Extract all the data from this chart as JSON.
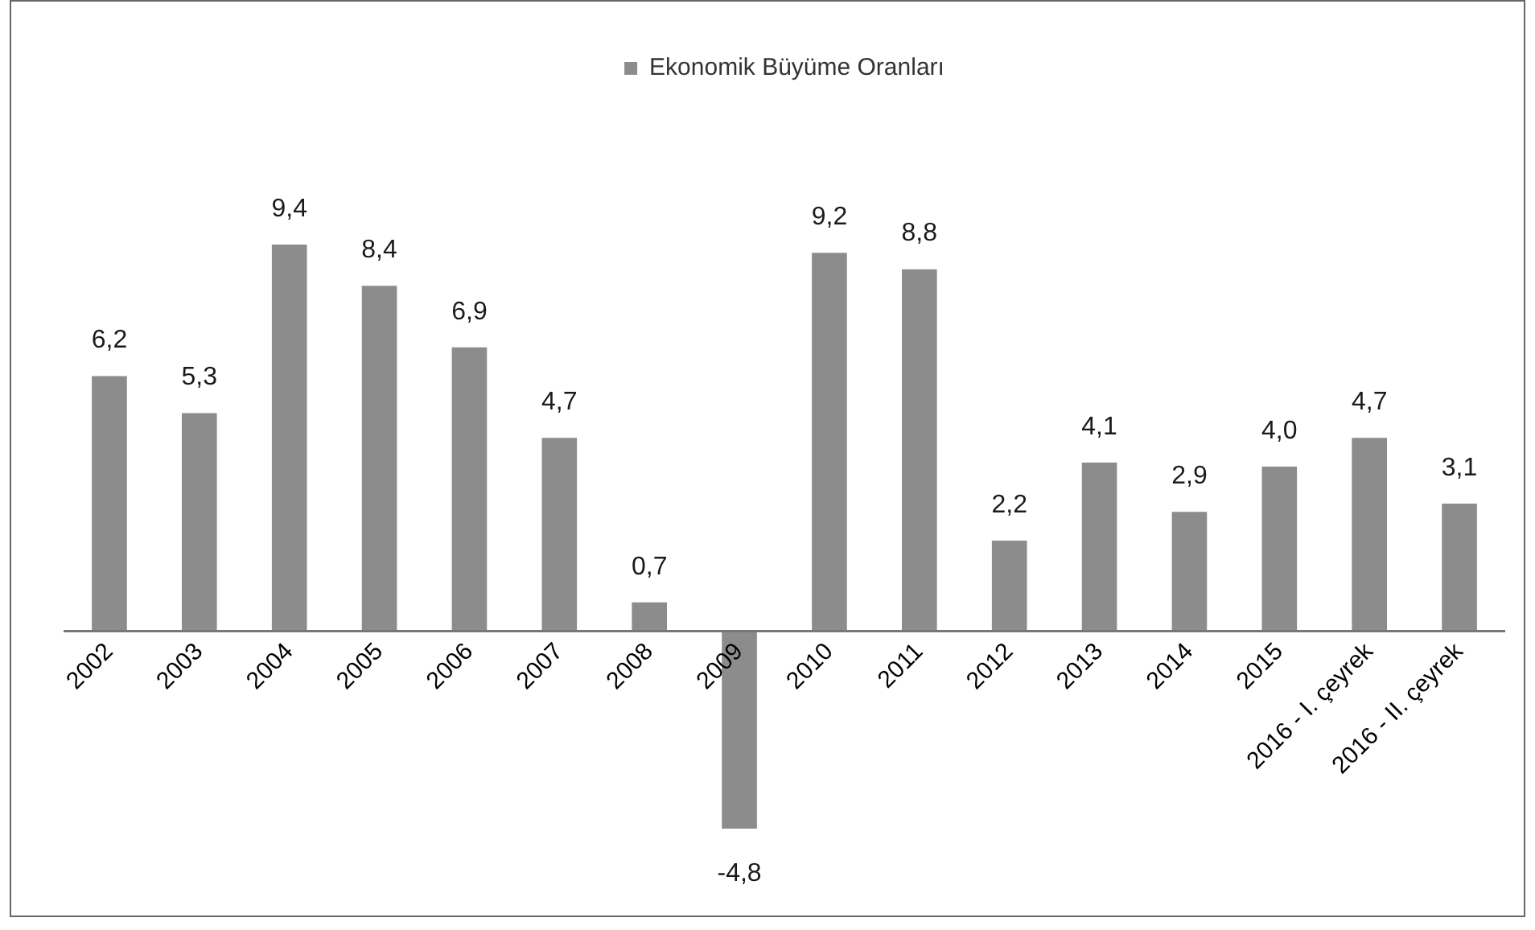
{
  "chart_data": {
    "type": "bar",
    "categories": [
      "2002",
      "2003",
      "2004",
      "2005",
      "2006",
      "2007",
      "2008",
      "2009",
      "2010",
      "2011",
      "2012",
      "2013",
      "2014",
      "2015",
      "2016 - I. çeyrek",
      "2016 - II. çeyrek"
    ],
    "series": [
      {
        "name": "Ekonomik Büyüme Oranları",
        "color": "#8c8c8c",
        "values": [
          6.2,
          5.3,
          9.4,
          8.4,
          6.9,
          4.7,
          0.7,
          -4.8,
          9.2,
          8.8,
          2.2,
          4.1,
          2.9,
          4.0,
          4.7,
          3.1
        ],
        "value_labels": [
          "6,2",
          "5,3",
          "9,4",
          "8,4",
          "6,9",
          "4,7",
          "0,7",
          "-4,8",
          "9,2",
          "8,8",
          "2,2",
          "4,1",
          "2,9",
          "4,0",
          "4,7",
          "3,1"
        ]
      }
    ],
    "legend": "top",
    "grid": false,
    "tick_labels": "x"
  }
}
